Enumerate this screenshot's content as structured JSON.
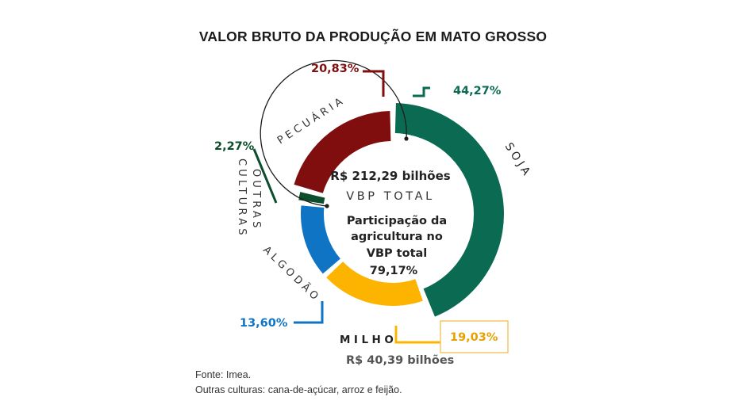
{
  "title": "VALOR BRUTO DA PRODUÇÃO EM MATO GROSSO",
  "center": {
    "total_value": "R$ 212,29 bilhões",
    "total_label": "VBP TOTAL",
    "share_label_line1": "Participação da",
    "share_label_line2": "agricultura no",
    "share_label_line3": "VBP total",
    "share_value": "79,17%"
  },
  "milho_extra_value": "R$ 40,39 bilhões",
  "footer": {
    "source": "Fonte: Imea.",
    "note": "Outras culturas:  cana-de-açúcar, arroz e feijão."
  },
  "colors": {
    "soja": "#0b6b52",
    "milho": "#fdb400",
    "algodao": "#0f74c4",
    "outras": "#0c4d2b",
    "pecuaria": "#800e0e",
    "milho_box_border": "#f0c04b"
  },
  "chart_data": {
    "type": "pie",
    "variant": "donut",
    "title": "VALOR BRUTO DA PRODUÇÃO EM MATO GROSSO",
    "slices": [
      {
        "name": "SOJA",
        "value": 44.27,
        "label": "44,27%"
      },
      {
        "name": "MILHO",
        "value": 19.03,
        "label": "19,03%"
      },
      {
        "name": "ALGODÃO",
        "value": 13.6,
        "label": "13,60%"
      },
      {
        "name": "OUTRAS CULTURAS",
        "value": 2.27,
        "label": "2,27%"
      },
      {
        "name": "PECUÁRIA",
        "value": 20.83,
        "label": "20,83%"
      }
    ]
  }
}
